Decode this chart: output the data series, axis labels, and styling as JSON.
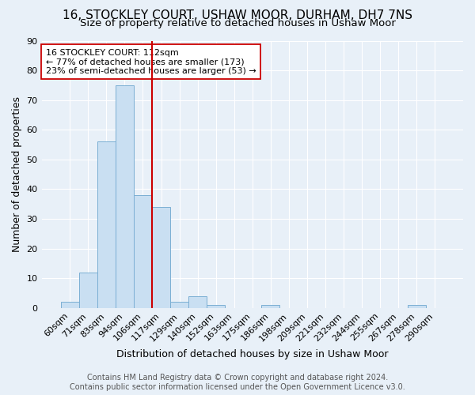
{
  "title": "16, STOCKLEY COURT, USHAW MOOR, DURHAM, DH7 7NS",
  "subtitle": "Size of property relative to detached houses in Ushaw Moor",
  "xlabel": "Distribution of detached houses by size in Ushaw Moor",
  "ylabel": "Number of detached properties",
  "bar_color": "#c9dff2",
  "bar_edge_color": "#7bafd4",
  "categories": [
    "60sqm",
    "71sqm",
    "83sqm",
    "94sqm",
    "106sqm",
    "117sqm",
    "129sqm",
    "140sqm",
    "152sqm",
    "163sqm",
    "175sqm",
    "186sqm",
    "198sqm",
    "209sqm",
    "221sqm",
    "232sqm",
    "244sqm",
    "255sqm",
    "267sqm",
    "278sqm",
    "290sqm"
  ],
  "values": [
    2,
    12,
    56,
    75,
    38,
    34,
    2,
    4,
    1,
    0,
    0,
    1,
    0,
    0,
    0,
    0,
    0,
    0,
    0,
    1,
    0
  ],
  "vline_x": 4.5,
  "vline_color": "#cc0000",
  "annotation_line1": "16 STOCKLEY COURT: 112sqm",
  "annotation_line2": "← 77% of detached houses are smaller (173)",
  "annotation_line3": "23% of semi-detached houses are larger (53) →",
  "annotation_box_color": "white",
  "annotation_box_edge": "#cc0000",
  "ylim": [
    0,
    90
  ],
  "yticks": [
    0,
    10,
    20,
    30,
    40,
    50,
    60,
    70,
    80,
    90
  ],
  "footer": "Contains HM Land Registry data © Crown copyright and database right 2024.\nContains public sector information licensed under the Open Government Licence v3.0.",
  "background_color": "#e8f0f8",
  "grid_color": "white",
  "title_fontsize": 11,
  "subtitle_fontsize": 9.5,
  "axis_label_fontsize": 9,
  "tick_fontsize": 8,
  "footer_fontsize": 7
}
